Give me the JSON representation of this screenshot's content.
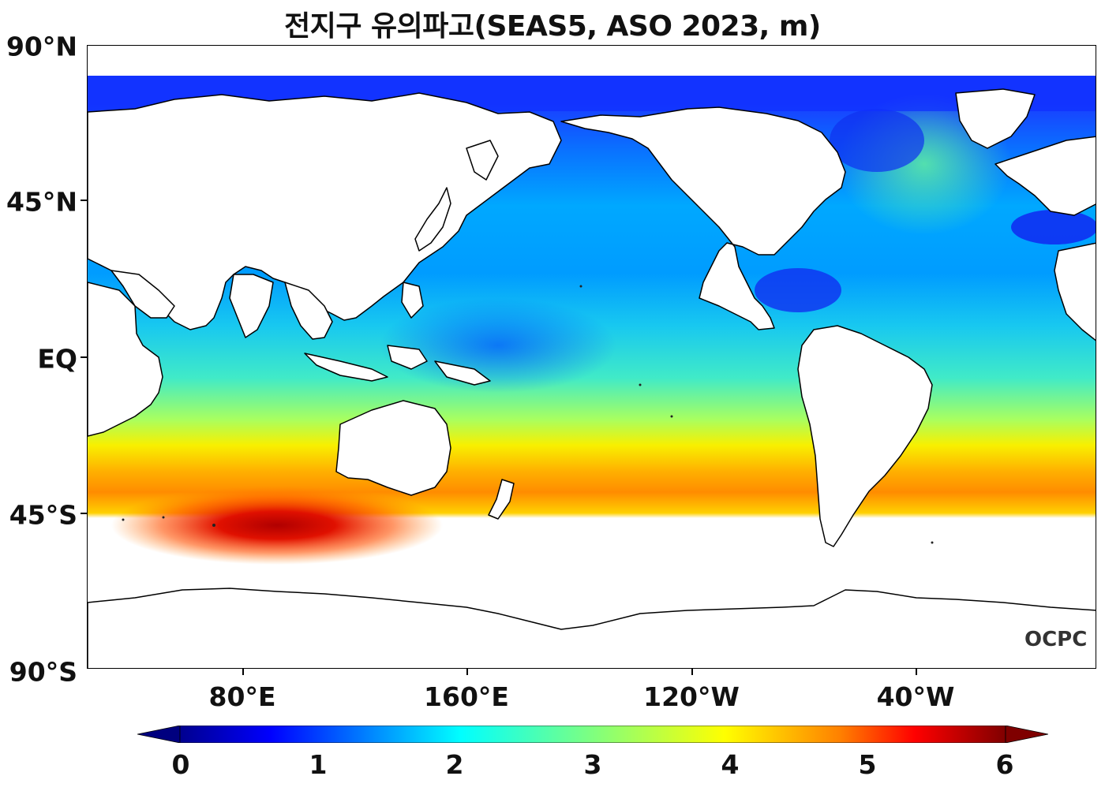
{
  "title": "전지구 유의파고(SEAS5, ASO 2023, m)",
  "logo_text": "OCPC",
  "axes": {
    "lat_labels": [
      "90°N",
      "45°N",
      "EQ",
      "45°S",
      "90°S"
    ],
    "lon_labels": [
      "80°E",
      "160°E",
      "120°W",
      "40°W"
    ]
  },
  "colorbar": {
    "ticks": [
      "0",
      "1",
      "2",
      "3",
      "4",
      "5",
      "6"
    ],
    "min": 0,
    "max": 6,
    "extend": "both",
    "colormap": [
      "#00007f",
      "#0000ff",
      "#007fff",
      "#00ffff",
      "#7fff7f",
      "#ffff00",
      "#ff7f00",
      "#ff0000",
      "#7f0000"
    ]
  },
  "colors": {
    "land": "#ffffff",
    "coastline": "#000000"
  }
}
